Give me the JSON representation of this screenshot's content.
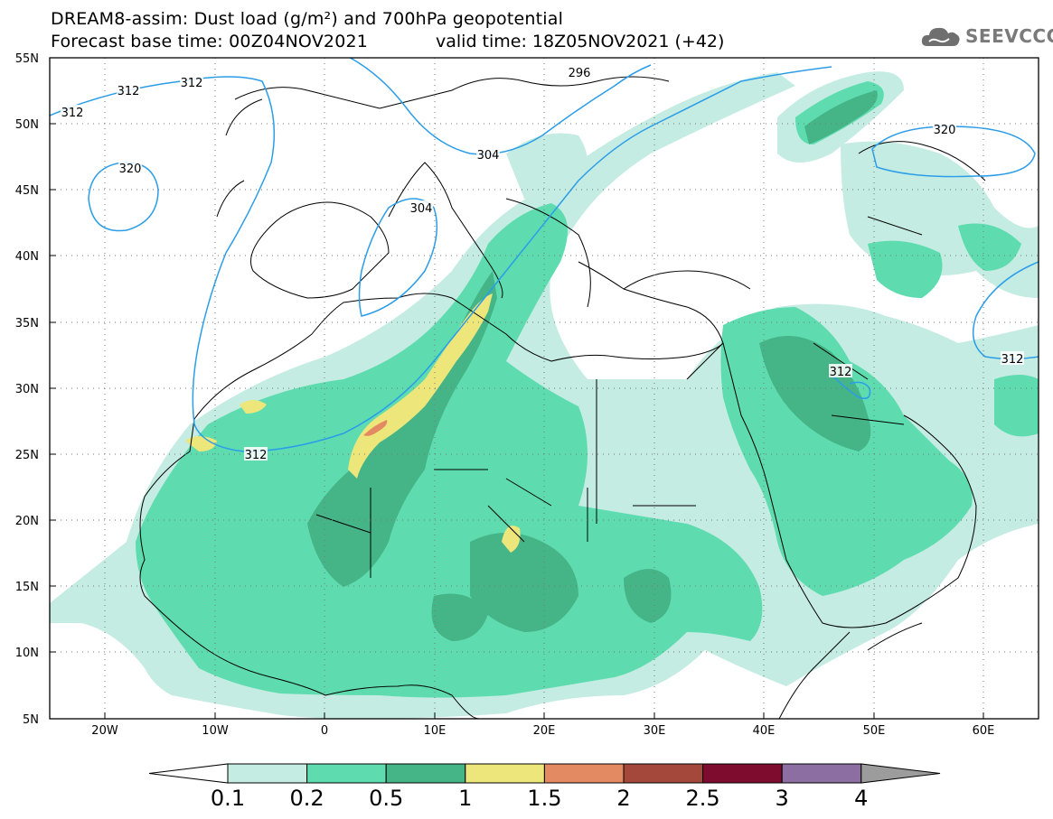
{
  "header": {
    "title_line1": "DREAM8-assim: Dust load (g/m²) and 700hPa geopotential",
    "title_line2": "Forecast base time: 00Z04NOV2021",
    "valid_time": "valid time: 18Z05NOV2021 (+42)",
    "logo_text": "SEEVCCC"
  },
  "axes": {
    "lat_labels": [
      "55N",
      "50N",
      "45N",
      "40N",
      "35N",
      "30N",
      "25N",
      "20N",
      "15N",
      "10N",
      "5N"
    ],
    "lon_labels": [
      "20W",
      "10W",
      "0",
      "10E",
      "20E",
      "30E",
      "40E",
      "50E",
      "60E"
    ]
  },
  "contours": {
    "labels": [
      "312",
      "312",
      "312",
      "320",
      "296",
      "304",
      "304",
      "312",
      "312",
      "312",
      "320"
    ]
  },
  "colorbar": {
    "labels": [
      "0.1",
      "0.2",
      "0.5",
      "1",
      "1.5",
      "2",
      "2.5",
      "3",
      "4"
    ],
    "colors": [
      "#c4ece2",
      "#5edcb0",
      "#45b588",
      "#ede67a",
      "#e48a62",
      "#a5483c",
      "#7e0c2e",
      "#8c6ea2",
      "#9c9c9c"
    ]
  },
  "map": {
    "lon_range": [
      -25,
      65
    ],
    "lat_range": [
      5,
      55
    ],
    "colors": {
      "dust_low": "#c4ece2",
      "dust_mid": "#5edcb0",
      "dust_high": "#45b588",
      "dust_1": "#ede67a",
      "dust_15": "#e48a62",
      "contour": "#2b9de8",
      "coast": "#000000"
    }
  }
}
